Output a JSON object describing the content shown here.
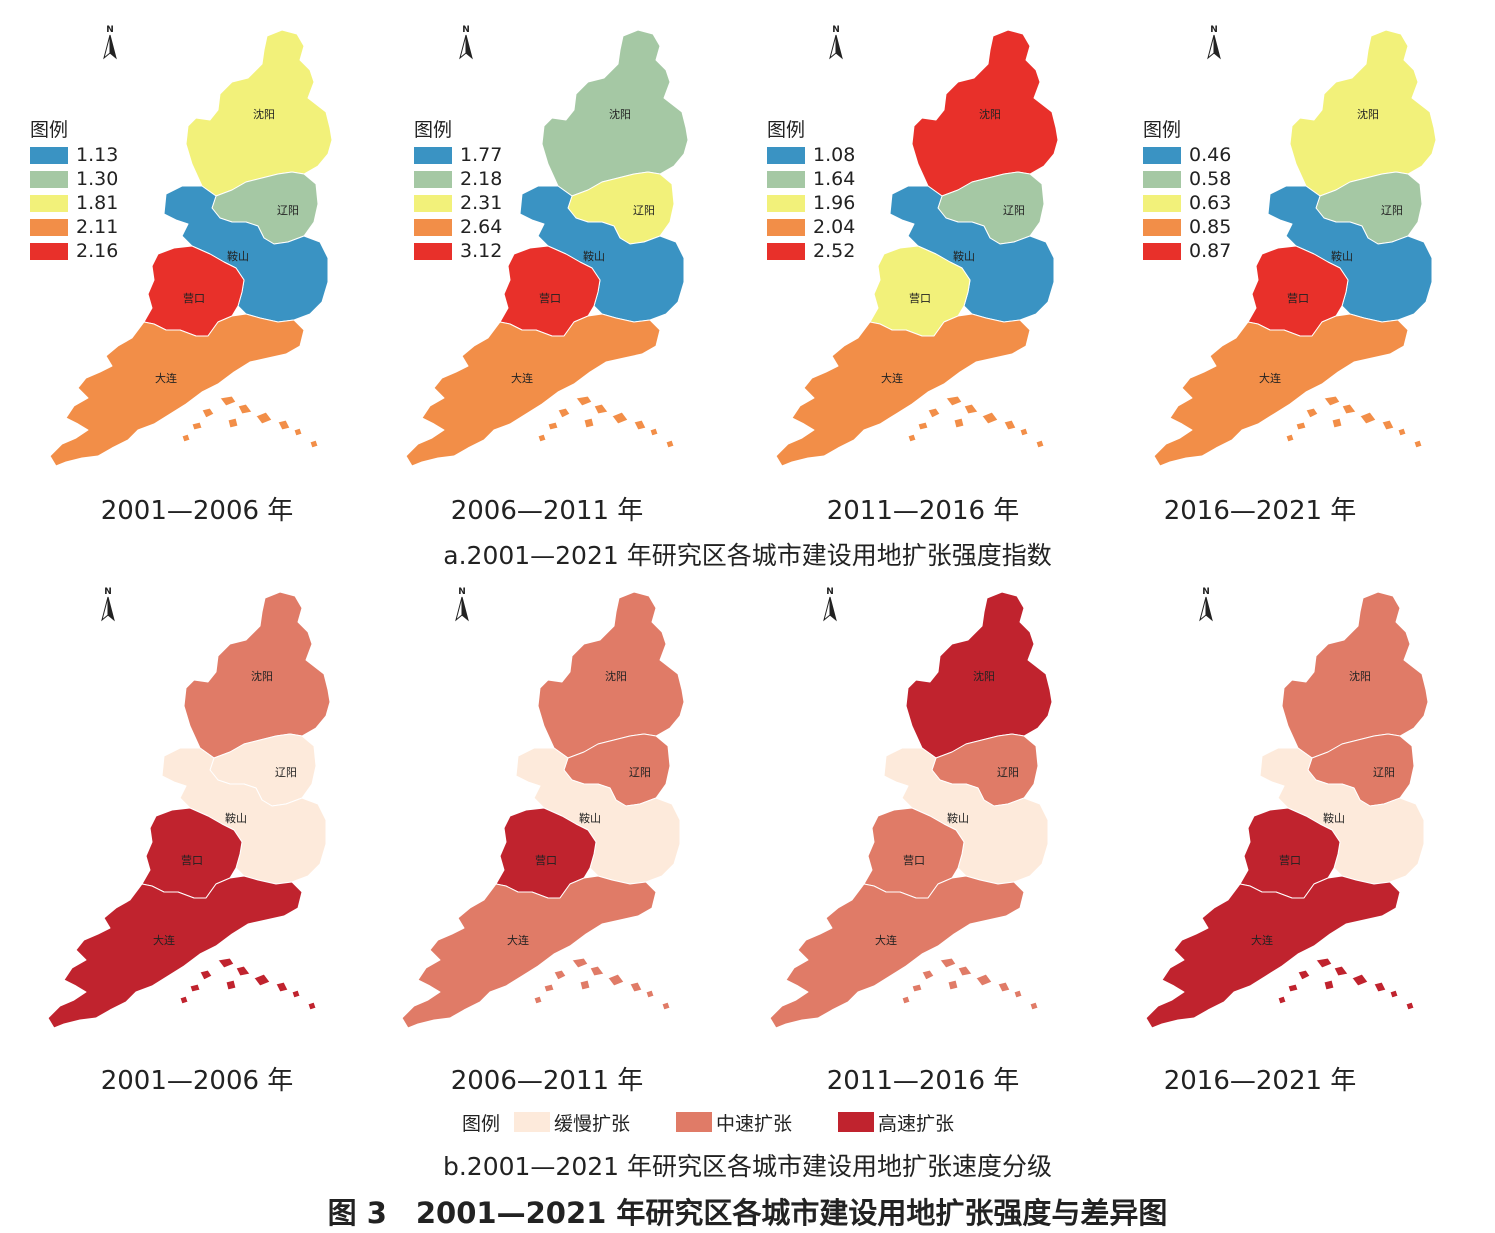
{
  "cities": {
    "shenyang": "沈阳",
    "liaoyang": "辽阳",
    "anshan": "鞍山",
    "yingkou": "营口",
    "dalian": "大连",
    "north": "N"
  },
  "legend_title": "图例",
  "panel_a": {
    "caption": "a.2001—2021 年研究区各城市建设用地扩张强度指数",
    "maps": [
      {
        "period": "2001—2006 年",
        "legend": [
          {
            "label": "1.13",
            "color": "#3a93c3"
          },
          {
            "label": "1.30",
            "color": "#a5c8a4"
          },
          {
            "label": "1.81",
            "color": "#f2f17a"
          },
          {
            "label": "2.11",
            "color": "#f28e48"
          },
          {
            "label": "2.16",
            "color": "#e8302a"
          }
        ],
        "fills": {
          "shenyang": "#f2f17a",
          "liaoyang": "#a5c8a4",
          "anshan": "#3a93c3",
          "yingkou": "#e8302a",
          "dalian": "#f28e48"
        }
      },
      {
        "period": "2006—2011 年",
        "legend": [
          {
            "label": "1.77",
            "color": "#3a93c3"
          },
          {
            "label": "2.18",
            "color": "#a5c8a4"
          },
          {
            "label": "2.31",
            "color": "#f2f17a"
          },
          {
            "label": "2.64",
            "color": "#f28e48"
          },
          {
            "label": "3.12",
            "color": "#e8302a"
          }
        ],
        "fills": {
          "shenyang": "#a5c8a4",
          "liaoyang": "#f2f17a",
          "anshan": "#3a93c3",
          "yingkou": "#e8302a",
          "dalian": "#f28e48"
        }
      },
      {
        "period": "2011—2016 年",
        "legend": [
          {
            "label": "1.08",
            "color": "#3a93c3"
          },
          {
            "label": "1.64",
            "color": "#a5c8a4"
          },
          {
            "label": "1.96",
            "color": "#f2f17a"
          },
          {
            "label": "2.04",
            "color": "#f28e48"
          },
          {
            "label": "2.52",
            "color": "#e8302a"
          }
        ],
        "fills": {
          "shenyang": "#e8302a",
          "liaoyang": "#a5c8a4",
          "anshan": "#3a93c3",
          "yingkou": "#f2f17a",
          "dalian": "#f28e48"
        }
      },
      {
        "period": "2016—2021 年",
        "legend": [
          {
            "label": "0.46",
            "color": "#3a93c3"
          },
          {
            "label": "0.58",
            "color": "#a5c8a4"
          },
          {
            "label": "0.63",
            "color": "#f2f17a"
          },
          {
            "label": "0.85",
            "color": "#f28e48"
          },
          {
            "label": "0.87",
            "color": "#e8302a"
          }
        ],
        "fills": {
          "shenyang": "#f2f17a",
          "liaoyang": "#a5c8a4",
          "anshan": "#3a93c3",
          "yingkou": "#e8302a",
          "dalian": "#f28e48"
        }
      }
    ]
  },
  "panel_b": {
    "caption": "b.2001—2021 年研究区各城市建设用地扩张速度分级",
    "legend": [
      {
        "label": "缓慢扩张",
        "color": "#fdeadb"
      },
      {
        "label": "中速扩张",
        "color": "#e07b67"
      },
      {
        "label": "高速扩张",
        "color": "#c0232e"
      }
    ],
    "maps": [
      {
        "period": "2001—2006 年",
        "fills": {
          "shenyang": "#e07b67",
          "liaoyang": "#fdeadb",
          "anshan": "#fdeadb",
          "yingkou": "#c0232e",
          "dalian": "#c0232e"
        }
      },
      {
        "period": "2006—2011 年",
        "fills": {
          "shenyang": "#e07b67",
          "liaoyang": "#e07b67",
          "anshan": "#fdeadb",
          "yingkou": "#c0232e",
          "dalian": "#e07b67"
        }
      },
      {
        "period": "2011—2016 年",
        "fills": {
          "shenyang": "#c0232e",
          "liaoyang": "#e07b67",
          "anshan": "#fdeadb",
          "yingkou": "#e07b67",
          "dalian": "#e07b67"
        }
      },
      {
        "period": "2016—2021 年",
        "fills": {
          "shenyang": "#e07b67",
          "liaoyang": "#e07b67",
          "anshan": "#fdeadb",
          "yingkou": "#c0232e",
          "dalian": "#c0232e"
        }
      }
    ]
  },
  "figure_title": "图 3　2001—2021 年研究区各城市建设用地扩张强度与差异图"
}
